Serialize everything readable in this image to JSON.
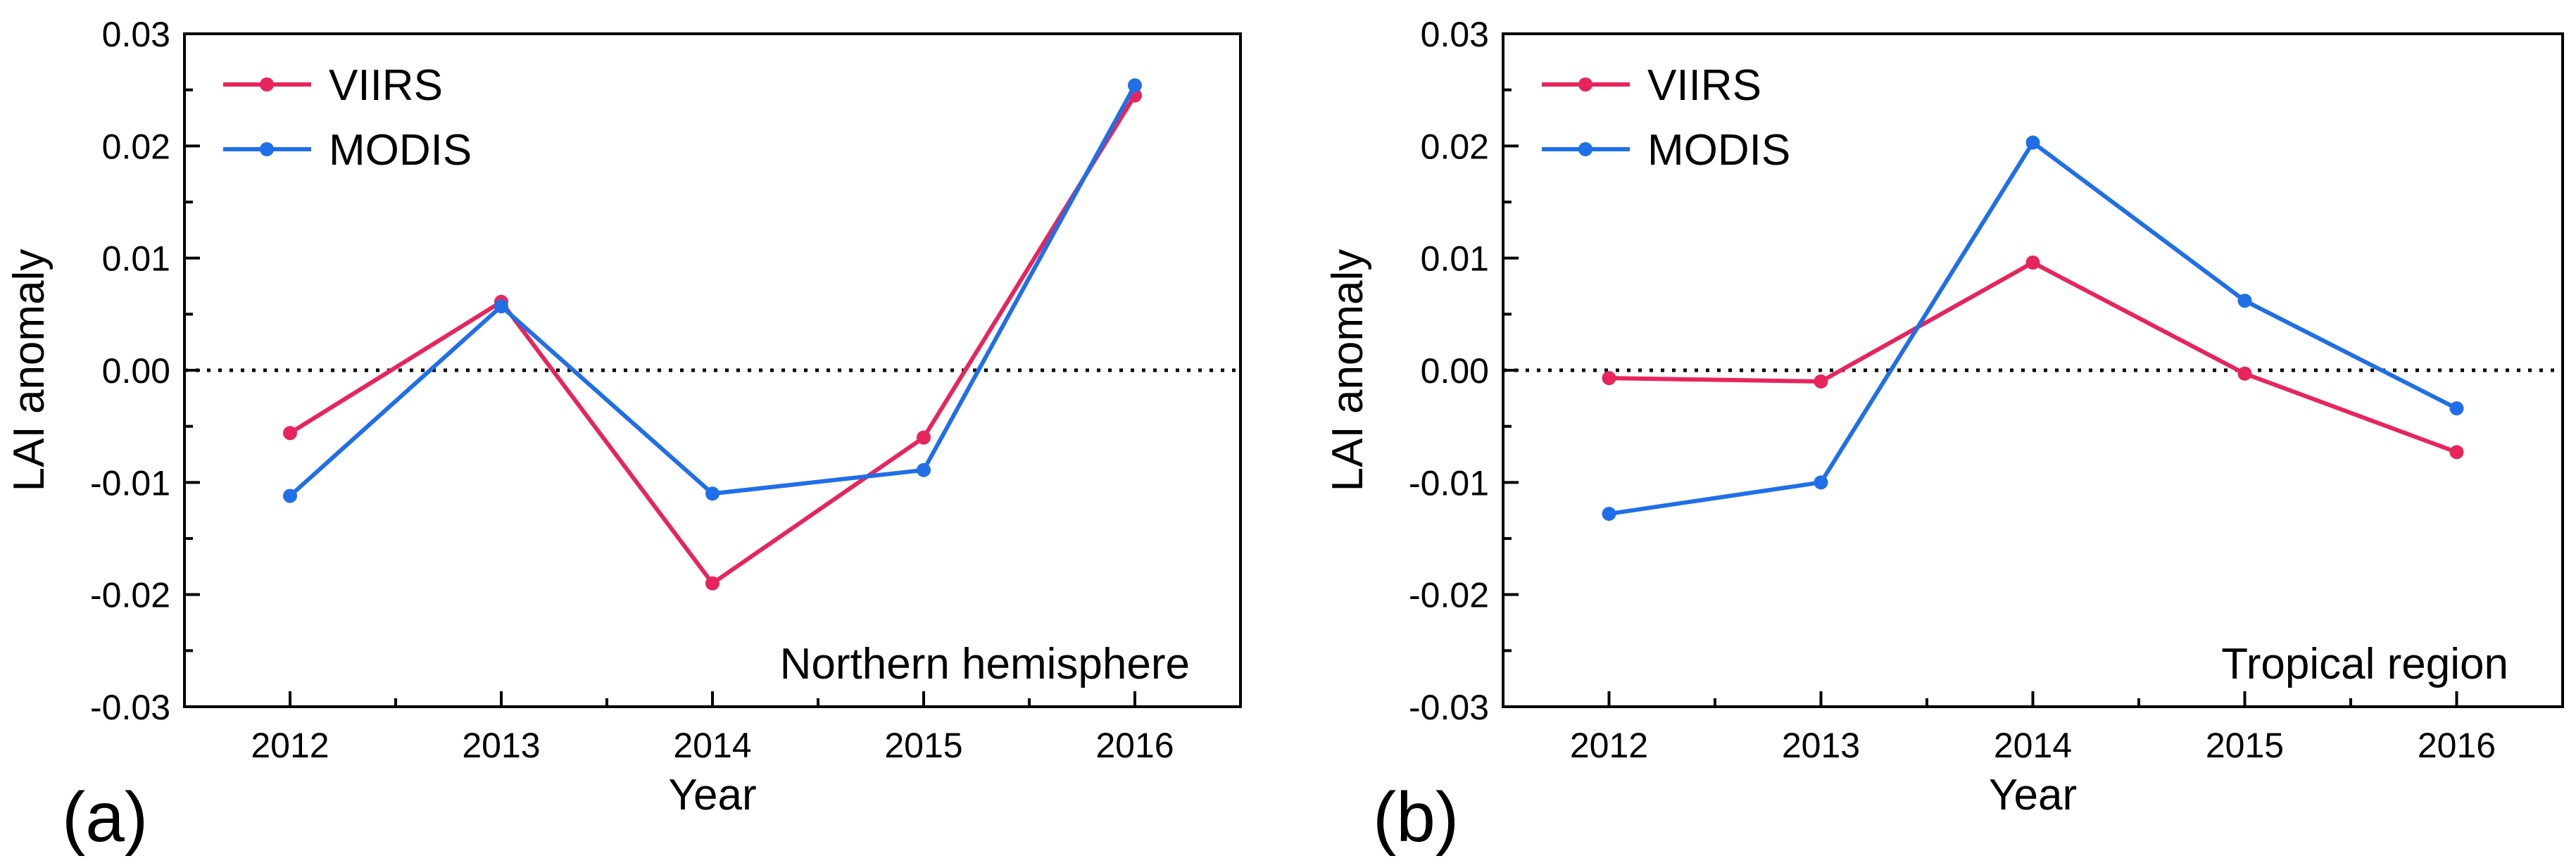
{
  "chart_data": [
    {
      "type": "line",
      "panel_label": "(a)",
      "annotation": "Northern hemisphere",
      "xlabel": "Year",
      "ylabel": "LAI anomaly",
      "categories": [
        "2012",
        "2013",
        "2014",
        "2015",
        "2016"
      ],
      "ylim": [
        -0.03,
        0.03
      ],
      "yticks": [
        "0.03",
        "0.02",
        "0.01",
        "0.00",
        "-0.01",
        "-0.02",
        "-0.03"
      ],
      "ytick_values": [
        0.03,
        0.02,
        0.01,
        0.0,
        -0.01,
        -0.02,
        -0.03
      ],
      "reference_line": 0.0,
      "legend_position": "top-left",
      "series": [
        {
          "name": "VIIRS",
          "color": "#e8245c",
          "values": [
            -0.0056,
            0.0061,
            -0.019,
            -0.006,
            0.0245
          ]
        },
        {
          "name": "MODIS",
          "color": "#1f6fe8",
          "values": [
            -0.0112,
            0.0057,
            -0.011,
            -0.0089,
            0.0254
          ]
        }
      ]
    },
    {
      "type": "line",
      "panel_label": "(b)",
      "annotation": "Tropical region",
      "xlabel": "Year",
      "ylabel": "LAI anomaly",
      "categories": [
        "2012",
        "2013",
        "2014",
        "2015",
        "2016"
      ],
      "ylim": [
        -0.03,
        0.03
      ],
      "yticks": [
        "0.03",
        "0.02",
        "0.01",
        "0.00",
        "-0.01",
        "-0.02",
        "-0.03"
      ],
      "ytick_values": [
        0.03,
        0.02,
        0.01,
        0.0,
        -0.01,
        -0.02,
        -0.03
      ],
      "reference_line": 0.0,
      "legend_position": "top-left",
      "series": [
        {
          "name": "VIIRS",
          "color": "#e8245c",
          "values": [
            -0.0007,
            -0.001,
            0.0096,
            -0.0003,
            -0.0073
          ]
        },
        {
          "name": "MODIS",
          "color": "#1f6fe8",
          "values": [
            -0.0128,
            -0.01,
            0.0203,
            0.0062,
            -0.0034
          ]
        }
      ]
    }
  ]
}
